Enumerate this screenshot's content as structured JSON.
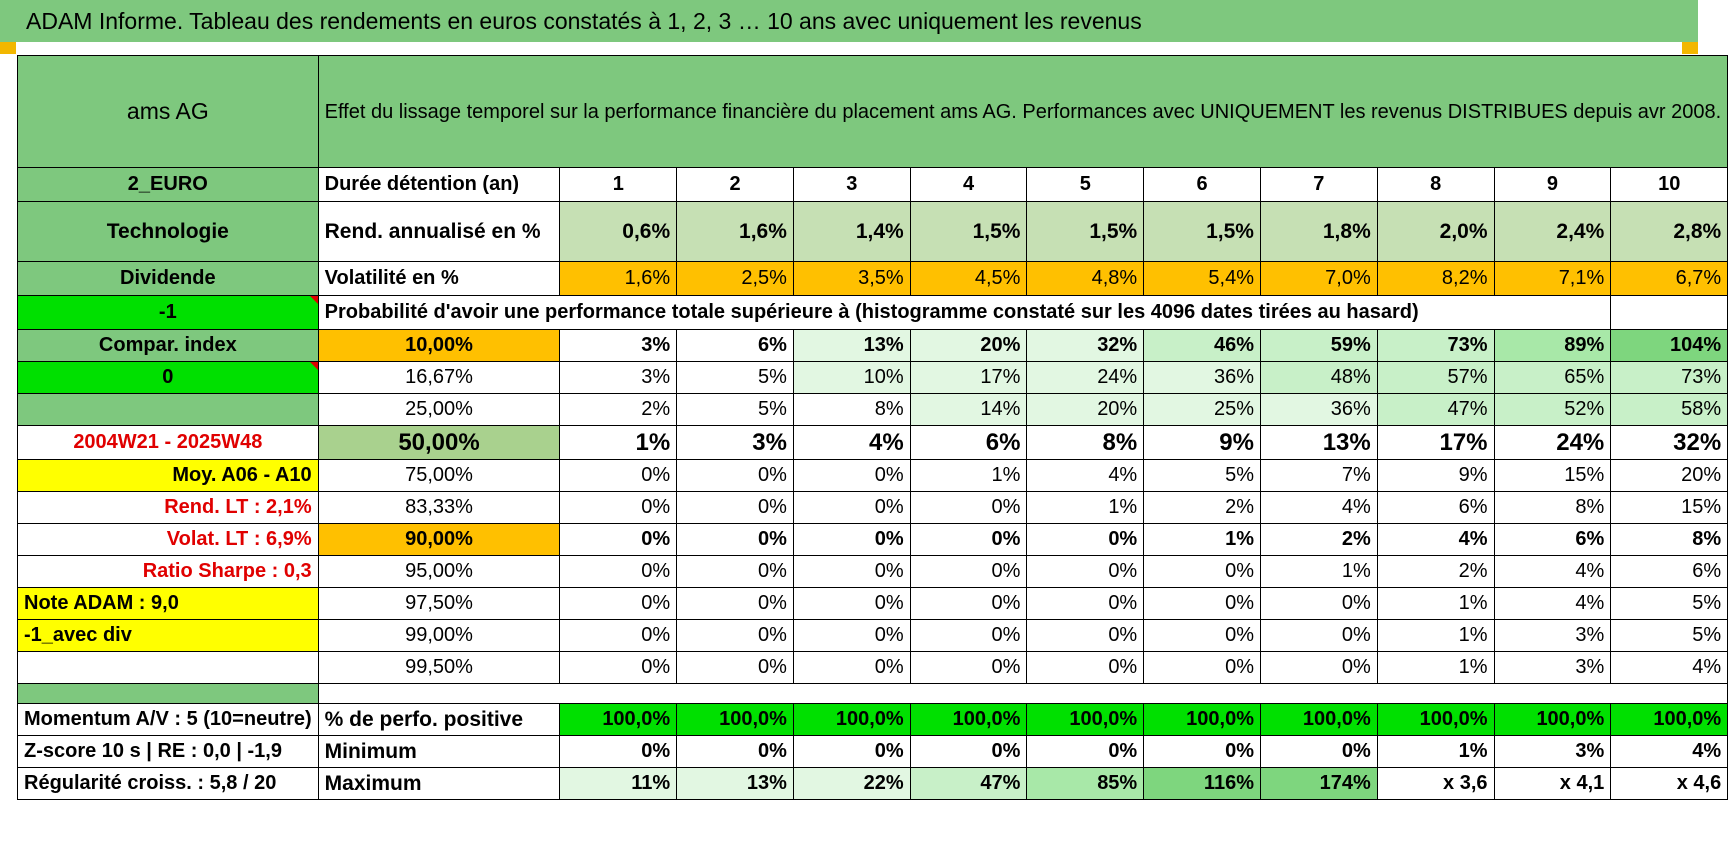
{
  "title": "ADAM Informe. Tableau des rendements en euros constatés à 1, 2, 3 … 10 ans avec uniquement les revenus",
  "colors": {
    "header_green": "#7ec87e",
    "bright_green": "#00e000",
    "orange": "#ffc000",
    "yellow": "#ffff00",
    "red_text": "#e00000"
  },
  "left": {
    "name": "ams AG",
    "currency": "2_EURO",
    "sector": "Technologie",
    "type": "Dividende",
    "flag1": "-1",
    "compar": "Compar. index",
    "flag2": "0",
    "period": "2004W21 - 2025W48",
    "moy": "Moy. A06 - A10",
    "rend_lt": "Rend. LT :    2,1%",
    "volat_lt": "Volat. LT :    6,9%",
    "sharpe": "Ratio Sharpe :     0,3",
    "note": "Note ADAM : 9,0",
    "avec_div": "-1_avec div"
  },
  "header_text": "Effet du lissage temporel sur la performance financière du placement ams AG. Performances avec UNIQUEMENT les revenus DISTRIBUES depuis avr 2008.",
  "duration_label": "Durée détention (an)",
  "years": [
    "1",
    "2",
    "3",
    "4",
    "5",
    "6",
    "7",
    "8",
    "9",
    "10"
  ],
  "rend_label": "Rend. annualisé en %",
  "rend": [
    "0,6%",
    "1,6%",
    "1,4%",
    "1,5%",
    "1,5%",
    "1,5%",
    "1,8%",
    "2,0%",
    "2,4%",
    "2,8%"
  ],
  "vol_label": "Volatilité en %",
  "vol": [
    "1,6%",
    "2,5%",
    "3,5%",
    "4,5%",
    "4,8%",
    "5,4%",
    "7,0%",
    "8,2%",
    "7,1%",
    "6,7%"
  ],
  "prob_text": "Probabilité d'avoir une performance totale supérieure à (histogramme constaté sur les 4096 dates tirées au hasard)",
  "quantiles": [
    {
      "q": "10,00%",
      "v": [
        "3%",
        "6%",
        "13%",
        "20%",
        "32%",
        "46%",
        "59%",
        "73%",
        "89%",
        "104%"
      ]
    },
    {
      "q": "16,67%",
      "v": [
        "3%",
        "5%",
        "10%",
        "17%",
        "24%",
        "36%",
        "48%",
        "57%",
        "65%",
        "73%"
      ]
    },
    {
      "q": "25,00%",
      "v": [
        "2%",
        "5%",
        "8%",
        "14%",
        "20%",
        "25%",
        "36%",
        "47%",
        "52%",
        "58%"
      ]
    },
    {
      "q": "50,00%",
      "v": [
        "1%",
        "3%",
        "4%",
        "6%",
        "8%",
        "9%",
        "13%",
        "17%",
        "24%",
        "32%"
      ]
    },
    {
      "q": "75,00%",
      "v": [
        "0%",
        "0%",
        "0%",
        "1%",
        "4%",
        "5%",
        "7%",
        "9%",
        "15%",
        "20%"
      ]
    },
    {
      "q": "83,33%",
      "v": [
        "0%",
        "0%",
        "0%",
        "0%",
        "1%",
        "2%",
        "4%",
        "6%",
        "8%",
        "15%"
      ]
    },
    {
      "q": "90,00%",
      "v": [
        "0%",
        "0%",
        "0%",
        "0%",
        "0%",
        "1%",
        "2%",
        "4%",
        "6%",
        "8%"
      ]
    },
    {
      "q": "95,00%",
      "v": [
        "0%",
        "0%",
        "0%",
        "0%",
        "0%",
        "0%",
        "1%",
        "2%",
        "4%",
        "6%"
      ]
    },
    {
      "q": "97,50%",
      "v": [
        "0%",
        "0%",
        "0%",
        "0%",
        "0%",
        "0%",
        "0%",
        "1%",
        "4%",
        "5%"
      ]
    },
    {
      "q": "99,00%",
      "v": [
        "0%",
        "0%",
        "0%",
        "0%",
        "0%",
        "0%",
        "0%",
        "1%",
        "3%",
        "5%"
      ]
    },
    {
      "q": "99,50%",
      "v": [
        "0%",
        "0%",
        "0%",
        "0%",
        "0%",
        "0%",
        "0%",
        "1%",
        "3%",
        "4%"
      ]
    }
  ],
  "bottom": {
    "momentum": "Momentum A/V : 5 (10=neutre)",
    "zscore": "Z-score 10 s | RE : 0,0 | -1,9",
    "regularite": "Régularité croiss. : 5,8 / 20",
    "pos_label": "% de perfo. positive",
    "pos": [
      "100,0%",
      "100,0%",
      "100,0%",
      "100,0%",
      "100,0%",
      "100,0%",
      "100,0%",
      "100,0%",
      "100,0%",
      "100,0%"
    ],
    "min_label": "Minimum",
    "min": [
      "0%",
      "0%",
      "0%",
      "0%",
      "0%",
      "0%",
      "0%",
      "1%",
      "3%",
      "4%"
    ],
    "max_label": "Maximum",
    "max": [
      "11%",
      "13%",
      "22%",
      "47%",
      "85%",
      "116%",
      "174%",
      "x 3,6",
      "x 4,1",
      "x 4,6"
    ]
  }
}
